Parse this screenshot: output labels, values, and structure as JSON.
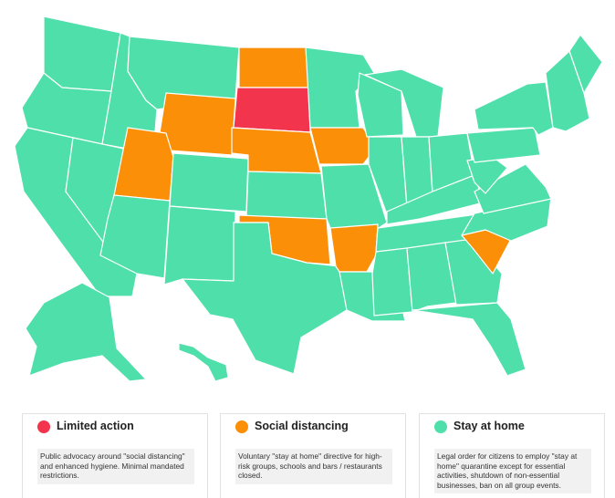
{
  "colors": {
    "limited_action": "#f2344d",
    "social_distancing": "#fb8f08",
    "stay_at_home": "#4fdfab",
    "border": "#ffffff"
  },
  "map": {
    "states": [
      {
        "id": "wa",
        "status": "stay_at_home"
      },
      {
        "id": "or",
        "status": "stay_at_home"
      },
      {
        "id": "ca",
        "status": "stay_at_home"
      },
      {
        "id": "id",
        "status": "stay_at_home"
      },
      {
        "id": "nv",
        "status": "stay_at_home"
      },
      {
        "id": "mt",
        "status": "stay_at_home"
      },
      {
        "id": "wy",
        "status": "social_distancing"
      },
      {
        "id": "ut",
        "status": "social_distancing"
      },
      {
        "id": "az",
        "status": "stay_at_home"
      },
      {
        "id": "co",
        "status": "stay_at_home"
      },
      {
        "id": "nm",
        "status": "stay_at_home"
      },
      {
        "id": "nd",
        "status": "social_distancing"
      },
      {
        "id": "sd",
        "status": "limited_action"
      },
      {
        "id": "ne",
        "status": "social_distancing"
      },
      {
        "id": "ks",
        "status": "stay_at_home"
      },
      {
        "id": "ok",
        "status": "social_distancing"
      },
      {
        "id": "tx",
        "status": "stay_at_home"
      },
      {
        "id": "mn",
        "status": "stay_at_home"
      },
      {
        "id": "ia",
        "status": "social_distancing"
      },
      {
        "id": "mo",
        "status": "stay_at_home"
      },
      {
        "id": "ar",
        "status": "social_distancing"
      },
      {
        "id": "la",
        "status": "stay_at_home"
      },
      {
        "id": "wi",
        "status": "stay_at_home"
      },
      {
        "id": "il",
        "status": "stay_at_home"
      },
      {
        "id": "mi",
        "status": "stay_at_home"
      },
      {
        "id": "in",
        "status": "stay_at_home"
      },
      {
        "id": "oh",
        "status": "stay_at_home"
      },
      {
        "id": "ky",
        "status": "stay_at_home"
      },
      {
        "id": "tn",
        "status": "stay_at_home"
      },
      {
        "id": "ms",
        "status": "stay_at_home"
      },
      {
        "id": "al",
        "status": "stay_at_home"
      },
      {
        "id": "ga",
        "status": "stay_at_home"
      },
      {
        "id": "fl",
        "status": "stay_at_home"
      },
      {
        "id": "sc",
        "status": "social_distancing"
      },
      {
        "id": "nc",
        "status": "stay_at_home"
      },
      {
        "id": "va",
        "status": "stay_at_home"
      },
      {
        "id": "wv",
        "status": "stay_at_home"
      },
      {
        "id": "pa",
        "status": "stay_at_home"
      },
      {
        "id": "ny",
        "status": "stay_at_home"
      },
      {
        "id": "ne_states",
        "status": "stay_at_home"
      },
      {
        "id": "me",
        "status": "stay_at_home"
      },
      {
        "id": "ak",
        "status": "stay_at_home"
      },
      {
        "id": "hi",
        "status": "stay_at_home"
      }
    ]
  },
  "legend": [
    {
      "key": "limited_action",
      "title": "Limited action",
      "description": "Public advocacy around \"social distancing\" and enhanced hygiene. Minimal mandated restrictions."
    },
    {
      "key": "social_distancing",
      "title": "Social distancing",
      "description": "Voluntary \"stay at home\" directive for high-risk groups, schools and bars / restaurants closed."
    },
    {
      "key": "stay_at_home",
      "title": "Stay at home",
      "description": "Legal order for citizens to employ \"stay at home\" quarantine except for essential activities, shutdown of non-essential businesses, ban on all group events."
    }
  ]
}
